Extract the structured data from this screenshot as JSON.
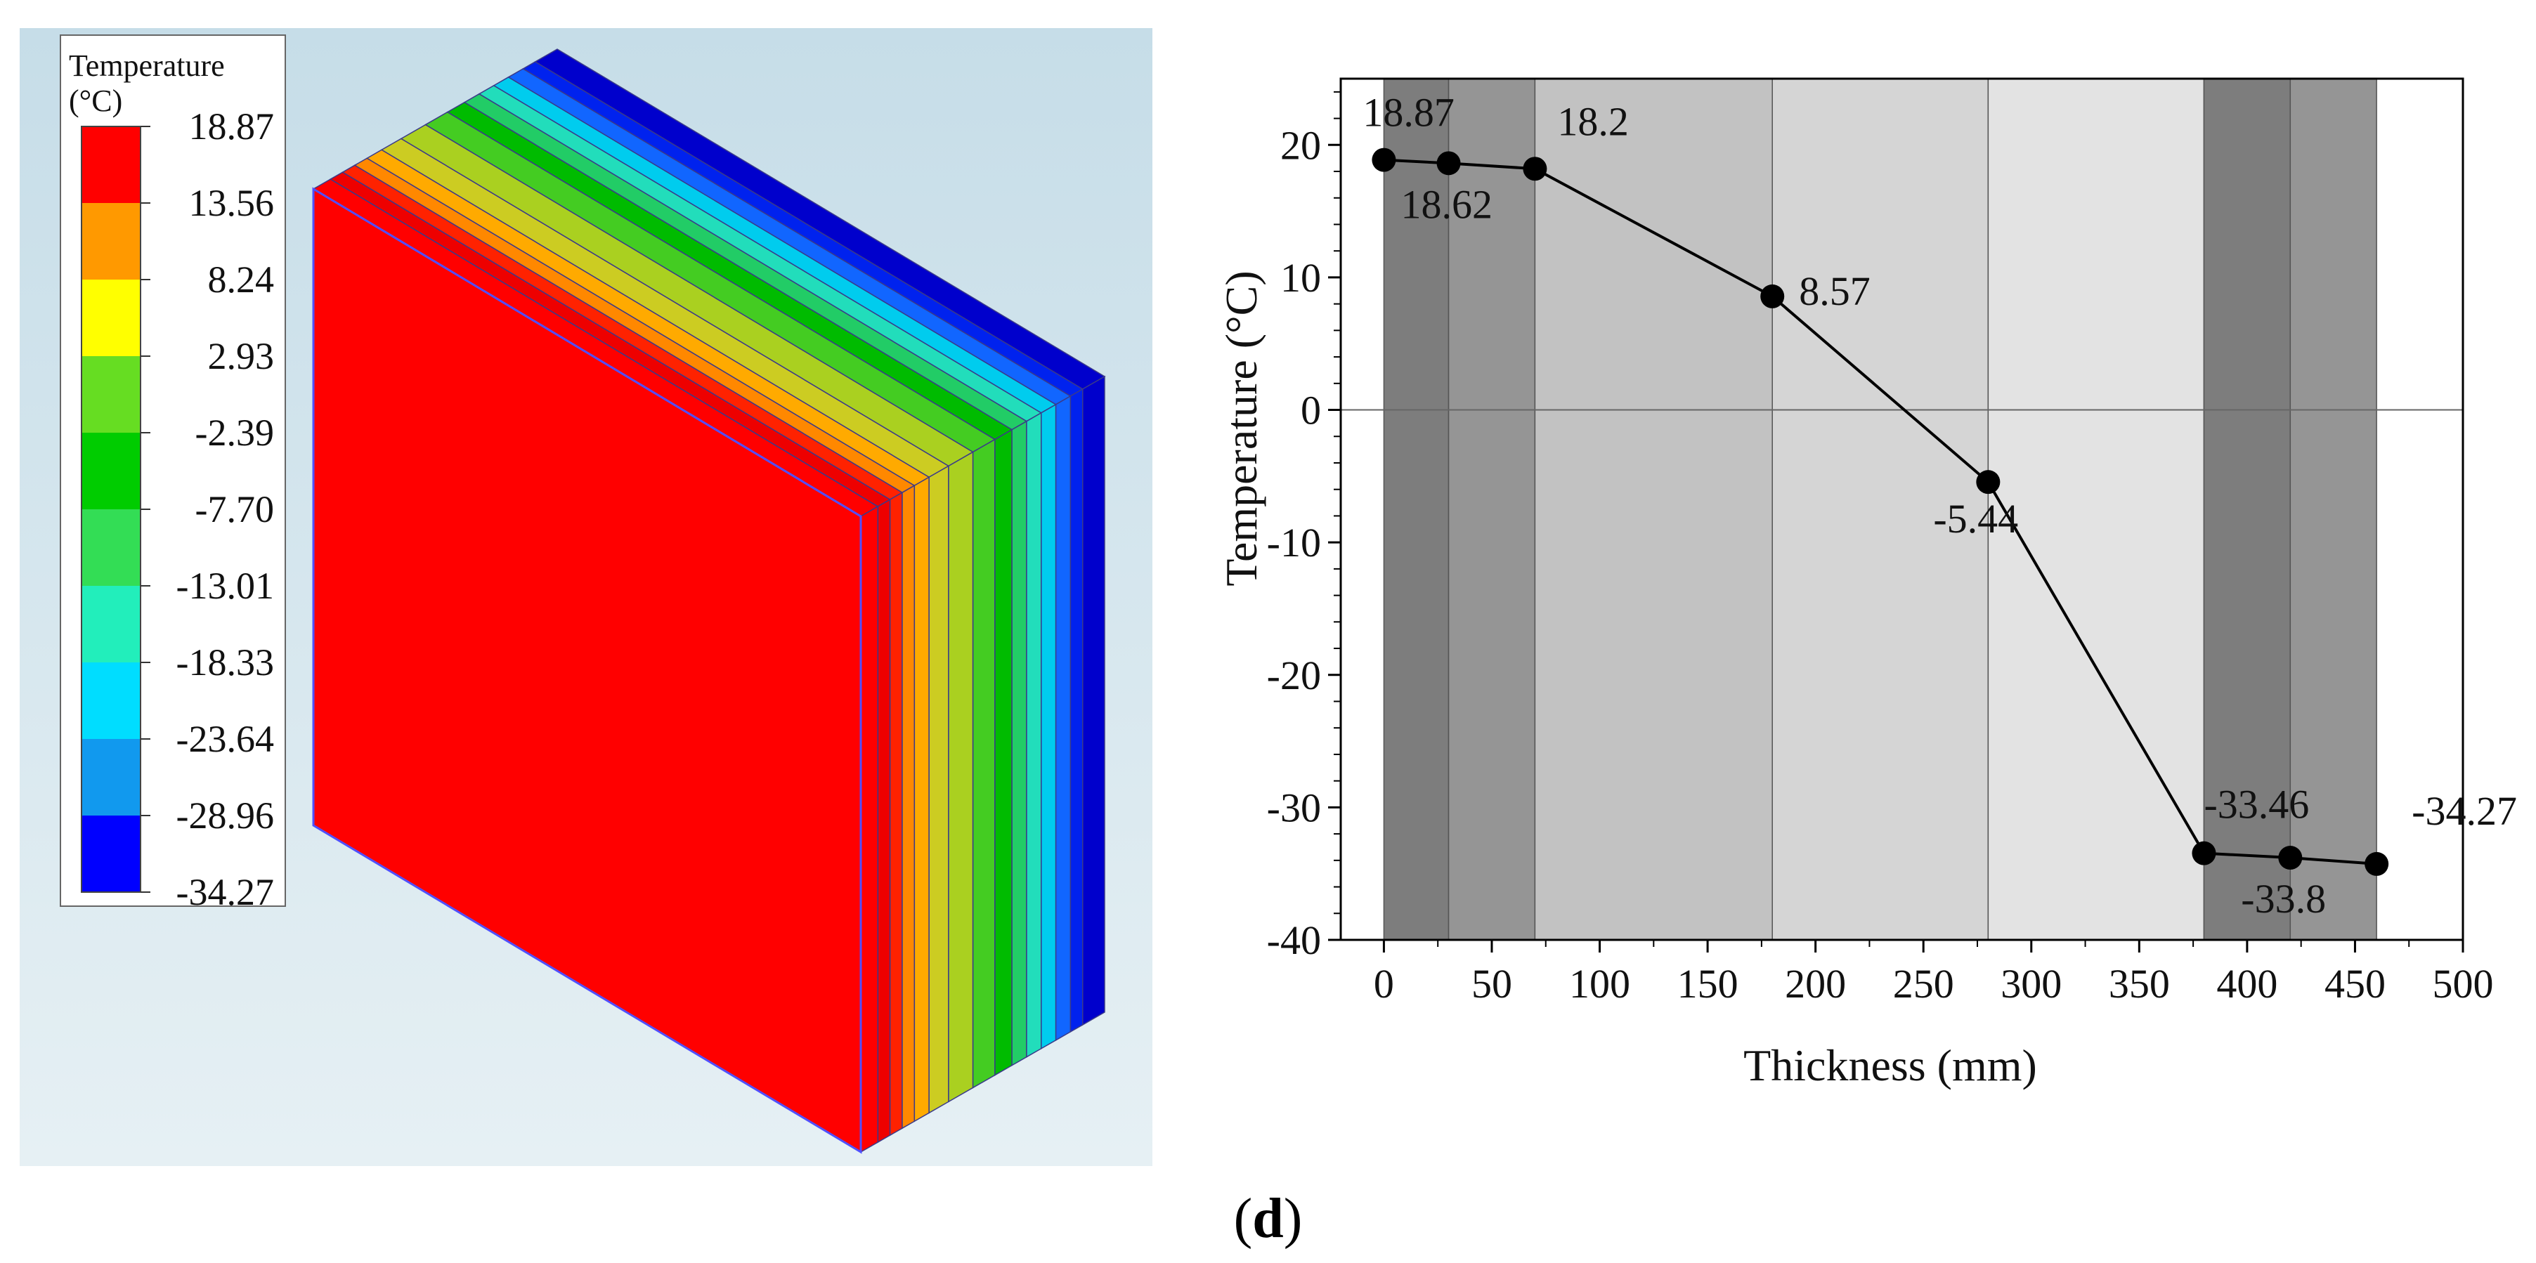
{
  "simulation": {
    "legend_title_line1": "Temperature",
    "legend_title_line2": "(°C)",
    "legend_levels": [
      "18.87",
      "13.56",
      "8.24",
      "2.93",
      "-2.39",
      "-7.70",
      "-13.01",
      "-18.33",
      "-23.64",
      "-28.96",
      "-34.27"
    ],
    "band_colors": [
      "#ff0000",
      "#ff9900",
      "#ffff00",
      "#66dd22",
      "#00cc00",
      "#33dd55",
      "#22eebb",
      "#00ddff",
      "#1199ee",
      "#0000ff"
    ],
    "colors": {
      "background_top": "#c6dde8",
      "background_bottom": "#e6f0f4",
      "front_face": "#ff0000",
      "side_dark_red": "#dd0000",
      "edge_lines": "#5050ff"
    }
  },
  "caption": {
    "open": "(",
    "letter": "d",
    "close": ")"
  },
  "chart_data": {
    "type": "line",
    "xlabel": "Thickness (mm)",
    "ylabel": "Temperature (°C)",
    "xlim": [
      -20,
      500
    ],
    "ylim": [
      -40,
      25
    ],
    "x_ticks": [
      0,
      50,
      100,
      150,
      200,
      250,
      300,
      350,
      400,
      450,
      500
    ],
    "y_ticks": [
      -40,
      -30,
      -20,
      -10,
      0,
      10,
      20
    ],
    "series": [
      {
        "name": "Temperature",
        "x": [
          0,
          30,
          70,
          180,
          280,
          380,
          420,
          460
        ],
        "y": [
          18.87,
          18.62,
          18.2,
          8.57,
          -5.44,
          -33.46,
          -33.8,
          -34.27
        ]
      }
    ],
    "data_labels": [
      "18.87",
      "18.62",
      "18.2",
      "8.57",
      "-5.44",
      "-33.46",
      "-33.8",
      "-34.27"
    ],
    "layers": [
      {
        "from": 0,
        "to": 30,
        "shade": "#7d7d7d"
      },
      {
        "from": 30,
        "to": 70,
        "shade": "#959595"
      },
      {
        "from": 70,
        "to": 180,
        "shade": "#c2c2c2"
      },
      {
        "from": 180,
        "to": 280,
        "shade": "#d5d5d5"
      },
      {
        "from": 280,
        "to": 380,
        "shade": "#e3e3e3"
      },
      {
        "from": 380,
        "to": 420,
        "shade": "#7d7d7d"
      },
      {
        "from": 420,
        "to": 460,
        "shade": "#959595"
      }
    ]
  }
}
